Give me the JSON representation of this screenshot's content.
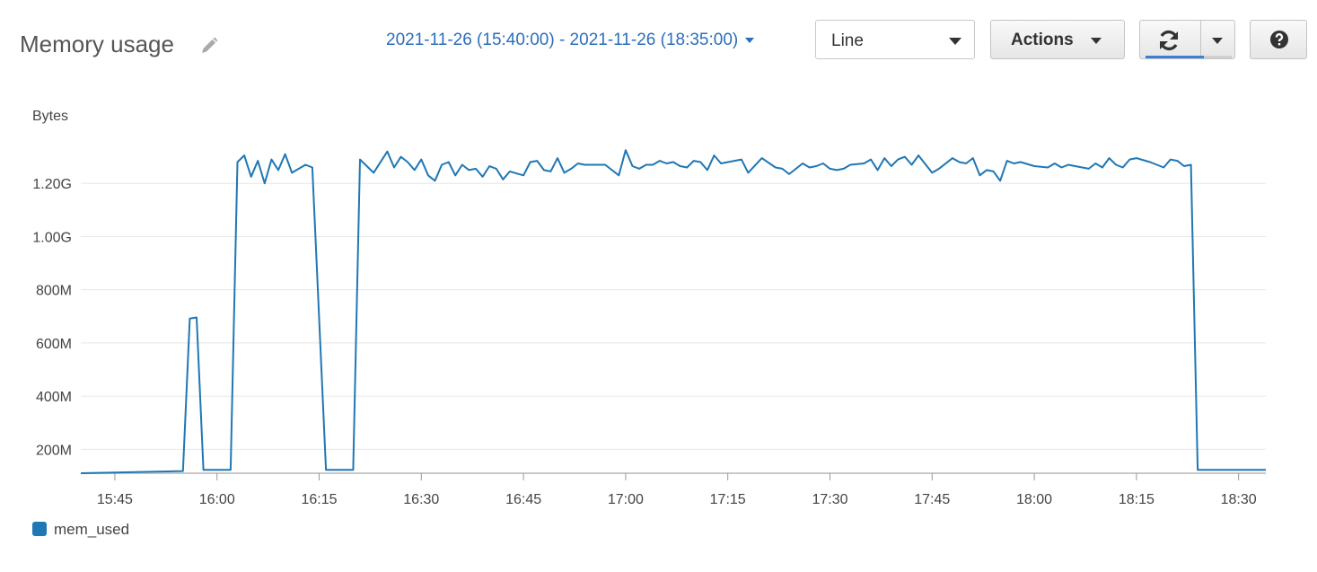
{
  "header": {
    "title": "Memory usage",
    "time_range": "2021-11-26 (15:40:00) - 2021-11-26 (18:35:00)",
    "view_select_value": "Line",
    "actions_label": "Actions",
    "refresh_progress": 0.68
  },
  "icons": [
    "pencil-icon",
    "caret-down-icon",
    "refresh-icon",
    "question-icon"
  ],
  "colors": {
    "accent": "#2a6ebb",
    "series": "#1f77b4",
    "grid": "#e6e6e6"
  },
  "chart_data": {
    "type": "line",
    "ylabel": "Bytes",
    "xlim": [
      "15:40",
      "18:34"
    ],
    "ylim": [
      110000000,
      1400000000
    ],
    "grid": true,
    "legend_position": "bottom-left",
    "x_ticks": [
      "15:45",
      "16:00",
      "16:15",
      "16:30",
      "16:45",
      "17:00",
      "17:15",
      "17:30",
      "17:45",
      "18:00",
      "18:15",
      "18:30"
    ],
    "y_ticks": [
      {
        "value": 200000000,
        "label": "200M"
      },
      {
        "value": 400000000,
        "label": "400M"
      },
      {
        "value": 600000000,
        "label": "600M"
      },
      {
        "value": 800000000,
        "label": "800M"
      },
      {
        "value": 1000000000,
        "label": "1.00G"
      },
      {
        "value": 1200000000,
        "label": "1.20G"
      }
    ],
    "series": [
      {
        "name": "mem_used",
        "color": "#1f77b4",
        "points": [
          [
            "15:40",
            110000000
          ],
          [
            "15:55",
            118000000
          ],
          [
            "15:56",
            692000000
          ],
          [
            "15:57",
            696000000
          ],
          [
            "15:58",
            123000000
          ],
          [
            "16:02",
            123000000
          ],
          [
            "16:03",
            1280000000
          ],
          [
            "16:04",
            1305000000
          ],
          [
            "16:05",
            1225000000
          ],
          [
            "16:06",
            1285000000
          ],
          [
            "16:07",
            1200000000
          ],
          [
            "16:08",
            1290000000
          ],
          [
            "16:09",
            1250000000
          ],
          [
            "16:10",
            1310000000
          ],
          [
            "16:11",
            1240000000
          ],
          [
            "16:12",
            1255000000
          ],
          [
            "16:13",
            1270000000
          ],
          [
            "16:14",
            1260000000
          ],
          [
            "16:16",
            123000000
          ],
          [
            "16:20",
            123000000
          ],
          [
            "16:21",
            1290000000
          ],
          [
            "16:23",
            1240000000
          ],
          [
            "16:25",
            1320000000
          ],
          [
            "16:26",
            1260000000
          ],
          [
            "16:27",
            1300000000
          ],
          [
            "16:28",
            1280000000
          ],
          [
            "16:29",
            1250000000
          ],
          [
            "16:30",
            1290000000
          ],
          [
            "16:31",
            1230000000
          ],
          [
            "16:32",
            1210000000
          ],
          [
            "16:33",
            1270000000
          ],
          [
            "16:34",
            1280000000
          ],
          [
            "16:35",
            1230000000
          ],
          [
            "16:36",
            1270000000
          ],
          [
            "16:37",
            1250000000
          ],
          [
            "16:38",
            1255000000
          ],
          [
            "16:39",
            1225000000
          ],
          [
            "16:40",
            1265000000
          ],
          [
            "16:41",
            1255000000
          ],
          [
            "16:42",
            1215000000
          ],
          [
            "16:43",
            1245000000
          ],
          [
            "16:45",
            1230000000
          ],
          [
            "16:46",
            1280000000
          ],
          [
            "16:47",
            1285000000
          ],
          [
            "16:48",
            1250000000
          ],
          [
            "16:49",
            1245000000
          ],
          [
            "16:50",
            1295000000
          ],
          [
            "16:51",
            1240000000
          ],
          [
            "16:52",
            1255000000
          ],
          [
            "16:53",
            1275000000
          ],
          [
            "16:54",
            1270000000
          ],
          [
            "16:57",
            1270000000
          ],
          [
            "16:59",
            1230000000
          ],
          [
            "17:00",
            1325000000
          ],
          [
            "17:01",
            1265000000
          ],
          [
            "17:02",
            1255000000
          ],
          [
            "17:03",
            1270000000
          ],
          [
            "17:04",
            1270000000
          ],
          [
            "17:05",
            1285000000
          ],
          [
            "17:06",
            1275000000
          ],
          [
            "17:07",
            1280000000
          ],
          [
            "17:08",
            1265000000
          ],
          [
            "17:09",
            1260000000
          ],
          [
            "17:10",
            1285000000
          ],
          [
            "17:11",
            1280000000
          ],
          [
            "17:12",
            1250000000
          ],
          [
            "17:13",
            1305000000
          ],
          [
            "17:14",
            1275000000
          ],
          [
            "17:17",
            1290000000
          ],
          [
            "17:18",
            1240000000
          ],
          [
            "17:20",
            1295000000
          ],
          [
            "17:22",
            1260000000
          ],
          [
            "17:23",
            1255000000
          ],
          [
            "17:24",
            1235000000
          ],
          [
            "17:26",
            1275000000
          ],
          [
            "17:27",
            1260000000
          ],
          [
            "17:28",
            1265000000
          ],
          [
            "17:29",
            1275000000
          ],
          [
            "17:30",
            1255000000
          ],
          [
            "17:31",
            1250000000
          ],
          [
            "17:32",
            1255000000
          ],
          [
            "17:33",
            1270000000
          ],
          [
            "17:35",
            1275000000
          ],
          [
            "17:36",
            1290000000
          ],
          [
            "17:37",
            1250000000
          ],
          [
            "17:38",
            1295000000
          ],
          [
            "17:39",
            1265000000
          ],
          [
            "17:40",
            1290000000
          ],
          [
            "17:41",
            1300000000
          ],
          [
            "17:42",
            1270000000
          ],
          [
            "17:43",
            1305000000
          ],
          [
            "17:45",
            1240000000
          ],
          [
            "17:46",
            1255000000
          ],
          [
            "17:48",
            1295000000
          ],
          [
            "17:49",
            1280000000
          ],
          [
            "17:50",
            1275000000
          ],
          [
            "17:51",
            1295000000
          ],
          [
            "17:52",
            1230000000
          ],
          [
            "17:53",
            1250000000
          ],
          [
            "17:54",
            1245000000
          ],
          [
            "17:55",
            1210000000
          ],
          [
            "17:56",
            1285000000
          ],
          [
            "17:57",
            1275000000
          ],
          [
            "17:58",
            1280000000
          ],
          [
            "18:00",
            1265000000
          ],
          [
            "18:02",
            1260000000
          ],
          [
            "18:03",
            1275000000
          ],
          [
            "18:04",
            1260000000
          ],
          [
            "18:05",
            1270000000
          ],
          [
            "18:06",
            1265000000
          ],
          [
            "18:08",
            1255000000
          ],
          [
            "18:09",
            1275000000
          ],
          [
            "18:10",
            1260000000
          ],
          [
            "18:11",
            1295000000
          ],
          [
            "18:12",
            1270000000
          ],
          [
            "18:13",
            1260000000
          ],
          [
            "18:14",
            1290000000
          ],
          [
            "18:15",
            1295000000
          ],
          [
            "18:17",
            1280000000
          ],
          [
            "18:19",
            1260000000
          ],
          [
            "18:20",
            1290000000
          ],
          [
            "18:21",
            1285000000
          ],
          [
            "18:22",
            1265000000
          ],
          [
            "18:23",
            1270000000
          ],
          [
            "18:24",
            123000000
          ],
          [
            "18:34",
            123000000
          ]
        ]
      }
    ]
  }
}
